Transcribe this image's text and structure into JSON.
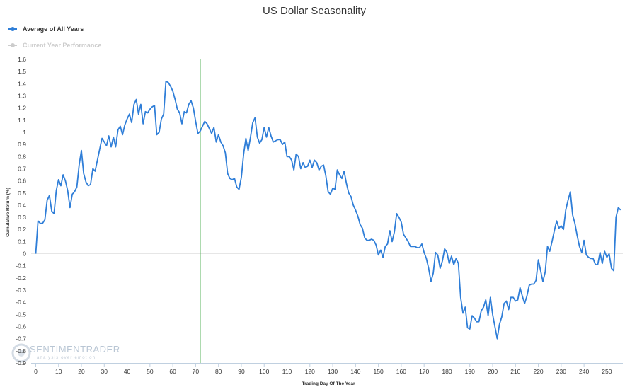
{
  "chart_data": {
    "type": "line",
    "title": "US Dollar Seasonality",
    "xlabel": "Trading Day Of The Year",
    "ylabel": "Cumulative Return (%)",
    "xlim": [
      -2,
      257
    ],
    "ylim": [
      -0.9,
      1.6
    ],
    "xticks": [
      0,
      10,
      20,
      30,
      40,
      50,
      60,
      70,
      80,
      90,
      100,
      110,
      120,
      130,
      140,
      150,
      160,
      170,
      180,
      190,
      200,
      210,
      220,
      230,
      240,
      250
    ],
    "yticks": [
      1.6,
      1.5,
      1.4,
      1.3,
      1.2,
      1.1,
      1,
      0.9,
      0.8,
      0.7,
      0.6,
      0.5,
      0.4,
      0.3,
      0.2,
      0.1,
      0,
      -0.1,
      -0.2,
      -0.3,
      -0.4,
      -0.5,
      -0.6,
      -0.7,
      -0.8,
      -0.9
    ],
    "vertical_marker_x": 72,
    "legend_position": "top-left",
    "grid": false,
    "series": [
      {
        "name": "Average of All Years",
        "color": "#2f7ed8",
        "points": [
          [
            0,
            0
          ],
          [
            1,
            0.27
          ],
          [
            2,
            0.25
          ],
          [
            3,
            0.25
          ],
          [
            4,
            0.28
          ],
          [
            5,
            0.44
          ],
          [
            6,
            0.48
          ],
          [
            7,
            0.35
          ],
          [
            8,
            0.33
          ],
          [
            9,
            0.52
          ],
          [
            10,
            0.61
          ],
          [
            11,
            0.56
          ],
          [
            12,
            0.65
          ],
          [
            13,
            0.6
          ],
          [
            14,
            0.52
          ],
          [
            15,
            0.38
          ],
          [
            16,
            0.49
          ],
          [
            17,
            0.51
          ],
          [
            18,
            0.55
          ],
          [
            19,
            0.73
          ],
          [
            20,
            0.85
          ],
          [
            21,
            0.66
          ],
          [
            22,
            0.59
          ],
          [
            23,
            0.56
          ],
          [
            24,
            0.57
          ],
          [
            25,
            0.7
          ],
          [
            26,
            0.68
          ],
          [
            27,
            0.77
          ],
          [
            28,
            0.86
          ],
          [
            29,
            0.95
          ],
          [
            30,
            0.92
          ],
          [
            31,
            0.89
          ],
          [
            32,
            0.97
          ],
          [
            33,
            0.88
          ],
          [
            34,
            0.96
          ],
          [
            35,
            0.88
          ],
          [
            36,
            1.02
          ],
          [
            37,
            1.05
          ],
          [
            38,
            0.98
          ],
          [
            39,
            1.06
          ],
          [
            40,
            1.11
          ],
          [
            41,
            1.15
          ],
          [
            42,
            1.08
          ],
          [
            43,
            1.23
          ],
          [
            44,
            1.27
          ],
          [
            45,
            1.15
          ],
          [
            46,
            1.23
          ],
          [
            47,
            1.07
          ],
          [
            48,
            1.17
          ],
          [
            49,
            1.16
          ],
          [
            50,
            1.19
          ],
          [
            51,
            1.21
          ],
          [
            52,
            1.22
          ],
          [
            53,
            0.98
          ],
          [
            54,
            1.0
          ],
          [
            55,
            1.11
          ],
          [
            56,
            1.15
          ],
          [
            57,
            1.42
          ],
          [
            58,
            1.41
          ],
          [
            59,
            1.38
          ],
          [
            60,
            1.34
          ],
          [
            61,
            1.27
          ],
          [
            62,
            1.19
          ],
          [
            63,
            1.16
          ],
          [
            64,
            1.07
          ],
          [
            65,
            1.17
          ],
          [
            66,
            1.16
          ],
          [
            67,
            1.23
          ],
          [
            68,
            1.26
          ],
          [
            69,
            1.2
          ],
          [
            70,
            1.09
          ],
          [
            71,
            0.99
          ],
          [
            72,
            1.01
          ],
          [
            73,
            1.05
          ],
          [
            74,
            1.09
          ],
          [
            75,
            1.07
          ],
          [
            76,
            1.03
          ],
          [
            77,
            0.99
          ],
          [
            78,
            1.04
          ],
          [
            79,
            0.92
          ],
          [
            80,
            0.98
          ],
          [
            81,
            0.92
          ],
          [
            82,
            0.89
          ],
          [
            83,
            0.83
          ],
          [
            84,
            0.66
          ],
          [
            85,
            0.62
          ],
          [
            86,
            0.61
          ],
          [
            87,
            0.62
          ],
          [
            88,
            0.55
          ],
          [
            89,
            0.53
          ],
          [
            90,
            0.63
          ],
          [
            91,
            0.82
          ],
          [
            92,
            0.95
          ],
          [
            93,
            0.85
          ],
          [
            94,
            0.96
          ],
          [
            95,
            1.08
          ],
          [
            96,
            1.12
          ],
          [
            97,
            0.96
          ],
          [
            98,
            0.91
          ],
          [
            99,
            0.94
          ],
          [
            100,
            1.04
          ],
          [
            101,
            0.96
          ],
          [
            102,
            1.04
          ],
          [
            103,
            0.97
          ],
          [
            104,
            0.92
          ],
          [
            105,
            0.93
          ],
          [
            106,
            0.94
          ],
          [
            107,
            0.94
          ],
          [
            108,
            0.9
          ],
          [
            109,
            0.92
          ],
          [
            110,
            0.8
          ],
          [
            111,
            0.8
          ],
          [
            112,
            0.77
          ],
          [
            113,
            0.69
          ],
          [
            114,
            0.82
          ],
          [
            115,
            0.8
          ],
          [
            116,
            0.7
          ],
          [
            117,
            0.75
          ],
          [
            118,
            0.71
          ],
          [
            119,
            0.72
          ],
          [
            120,
            0.77
          ],
          [
            121,
            0.71
          ],
          [
            122,
            0.77
          ],
          [
            123,
            0.75
          ],
          [
            124,
            0.69
          ],
          [
            125,
            0.72
          ],
          [
            126,
            0.73
          ],
          [
            127,
            0.64
          ],
          [
            128,
            0.51
          ],
          [
            129,
            0.49
          ],
          [
            130,
            0.54
          ],
          [
            131,
            0.53
          ],
          [
            132,
            0.69
          ],
          [
            133,
            0.65
          ],
          [
            134,
            0.62
          ],
          [
            135,
            0.68
          ],
          [
            136,
            0.58
          ],
          [
            137,
            0.5
          ],
          [
            138,
            0.47
          ],
          [
            139,
            0.4
          ],
          [
            140,
            0.36
          ],
          [
            141,
            0.31
          ],
          [
            142,
            0.24
          ],
          [
            143,
            0.21
          ],
          [
            144,
            0.13
          ],
          [
            145,
            0.11
          ],
          [
            146,
            0.11
          ],
          [
            147,
            0.12
          ],
          [
            148,
            0.11
          ],
          [
            149,
            0.07
          ],
          [
            150,
            -0.01
          ],
          [
            151,
            0.03
          ],
          [
            152,
            -0.03
          ],
          [
            153,
            0.06
          ],
          [
            154,
            0.08
          ],
          [
            155,
            0.19
          ],
          [
            156,
            0.1
          ],
          [
            157,
            0.18
          ],
          [
            158,
            0.33
          ],
          [
            159,
            0.3
          ],
          [
            160,
            0.26
          ],
          [
            161,
            0.16
          ],
          [
            162,
            0.13
          ],
          [
            163,
            0.1
          ],
          [
            164,
            0.06
          ],
          [
            165,
            0.06
          ],
          [
            166,
            0.06
          ],
          [
            167,
            0.05
          ],
          [
            168,
            0.05
          ],
          [
            169,
            0.08
          ],
          [
            170,
            0.01
          ],
          [
            171,
            -0.04
          ],
          [
            172,
            -0.12
          ],
          [
            173,
            -0.23
          ],
          [
            174,
            -0.16
          ],
          [
            175,
            0.01
          ],
          [
            176,
            -0.01
          ],
          [
            177,
            -0.12
          ],
          [
            178,
            -0.06
          ],
          [
            179,
            0.04
          ],
          [
            180,
            0.01
          ],
          [
            181,
            -0.08
          ],
          [
            182,
            -0.02
          ],
          [
            183,
            -0.09
          ],
          [
            184,
            -0.04
          ],
          [
            185,
            -0.08
          ],
          [
            186,
            -0.36
          ],
          [
            187,
            -0.49
          ],
          [
            188,
            -0.44
          ],
          [
            189,
            -0.61
          ],
          [
            190,
            -0.62
          ],
          [
            191,
            -0.51
          ],
          [
            192,
            -0.53
          ],
          [
            193,
            -0.56
          ],
          [
            194,
            -0.56
          ],
          [
            195,
            -0.47
          ],
          [
            196,
            -0.44
          ],
          [
            197,
            -0.38
          ],
          [
            198,
            -0.51
          ],
          [
            199,
            -0.36
          ],
          [
            200,
            -0.5
          ],
          [
            201,
            -0.6
          ],
          [
            202,
            -0.7
          ],
          [
            203,
            -0.58
          ],
          [
            204,
            -0.52
          ],
          [
            205,
            -0.41
          ],
          [
            206,
            -0.39
          ],
          [
            207,
            -0.46
          ],
          [
            208,
            -0.36
          ],
          [
            209,
            -0.36
          ],
          [
            210,
            -0.39
          ],
          [
            211,
            -0.38
          ],
          [
            212,
            -0.28
          ],
          [
            213,
            -0.35
          ],
          [
            214,
            -0.41
          ],
          [
            215,
            -0.35
          ],
          [
            216,
            -0.26
          ],
          [
            217,
            -0.25
          ],
          [
            218,
            -0.25
          ],
          [
            219,
            -0.22
          ],
          [
            220,
            -0.05
          ],
          [
            221,
            -0.14
          ],
          [
            222,
            -0.23
          ],
          [
            223,
            -0.15
          ],
          [
            224,
            0.06
          ],
          [
            225,
            0.02
          ],
          [
            226,
            0.1
          ],
          [
            227,
            0.19
          ],
          [
            228,
            0.27
          ],
          [
            229,
            0.21
          ],
          [
            230,
            0.23
          ],
          [
            231,
            0.2
          ],
          [
            232,
            0.36
          ],
          [
            233,
            0.44
          ],
          [
            234,
            0.51
          ],
          [
            235,
            0.32
          ],
          [
            236,
            0.25
          ],
          [
            237,
            0.15
          ],
          [
            238,
            0.06
          ],
          [
            239,
            0.01
          ],
          [
            240,
            0.11
          ],
          [
            241,
            -0.01
          ],
          [
            242,
            -0.03
          ],
          [
            243,
            -0.04
          ],
          [
            244,
            -0.04
          ],
          [
            245,
            -0.09
          ],
          [
            246,
            -0.09
          ],
          [
            247,
            0.01
          ],
          [
            248,
            -0.08
          ],
          [
            249,
            0.02
          ],
          [
            250,
            -0.03
          ],
          [
            251,
            0.0
          ],
          [
            252,
            -0.12
          ],
          [
            253,
            -0.14
          ],
          [
            254,
            0.3
          ],
          [
            255,
            0.38
          ],
          [
            256,
            0.36
          ]
        ]
      },
      {
        "name": "Current Year Performance",
        "color": "#cccccc",
        "hidden": true,
        "points": []
      }
    ]
  },
  "watermark": {
    "brand": "SENTIMENTRADER",
    "tagline": "analysis over emotion"
  }
}
